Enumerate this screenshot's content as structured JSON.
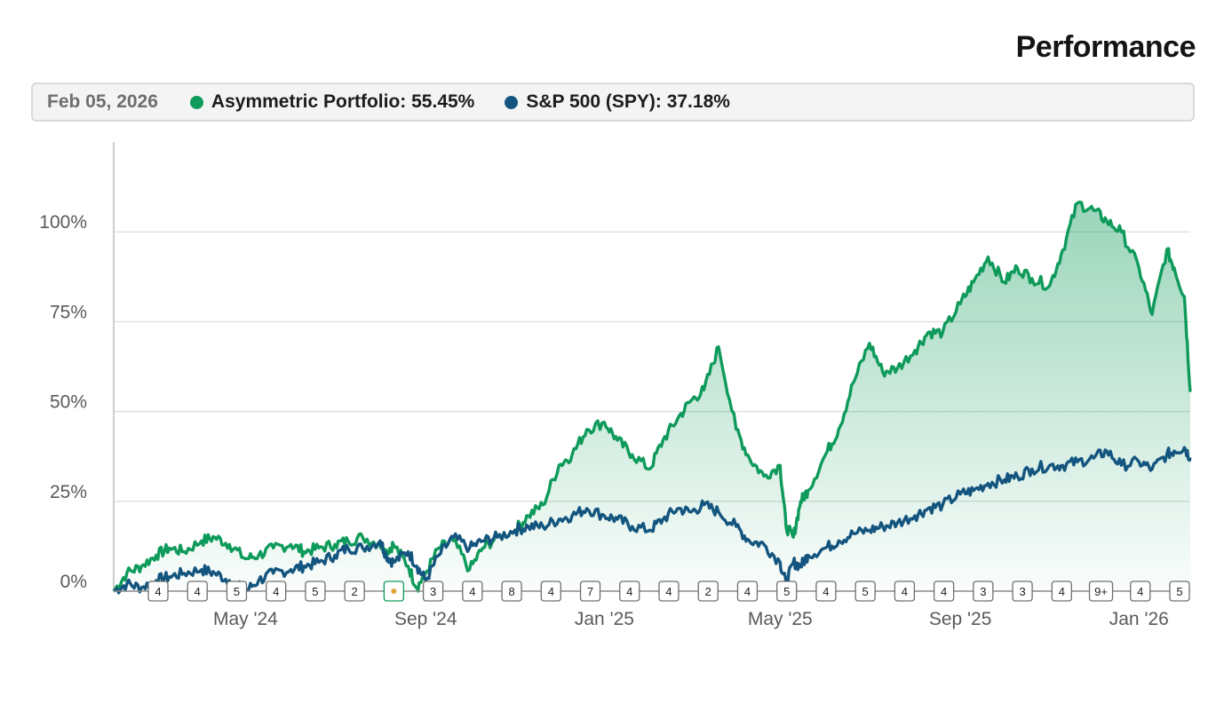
{
  "header": {
    "title": "Performance"
  },
  "legend": {
    "date": "Feb 05, 2026",
    "items": [
      {
        "label": "Asymmetric Portfolio: 55.45%",
        "color": "#0e9a5a"
      },
      {
        "label": "S&P 500 (SPY): 37.18%",
        "color": "#14557f"
      }
    ]
  },
  "chart_data": {
    "type": "area",
    "x_axis": {
      "start": "2024-02-01",
      "end": "2026-02-05",
      "ticks": [
        {
          "date": "2024-05-01",
          "label": "May '24"
        },
        {
          "date": "2024-09-01",
          "label": "Sep '24"
        },
        {
          "date": "2025-01-01",
          "label": "Jan '25"
        },
        {
          "date": "2025-05-01",
          "label": "May '25"
        },
        {
          "date": "2025-09-01",
          "label": "Sep '25"
        },
        {
          "date": "2026-01-01",
          "label": "Jan '26"
        }
      ]
    },
    "y_axis": {
      "min": 0,
      "max": 125,
      "ticks": [
        0,
        25,
        50,
        75,
        100
      ],
      "tick_labels": [
        "0%",
        "25%",
        "50%",
        "75%",
        "100%"
      ]
    },
    "grid": "horizontal",
    "series": [
      {
        "name": "Asymmetric Portfolio",
        "color": "#0e9a5a",
        "filled": true,
        "points": [
          [
            "2024-02-01",
            0
          ],
          [
            "2024-02-10",
            5
          ],
          [
            "2024-02-20",
            7
          ],
          [
            "2024-03-01",
            10
          ],
          [
            "2024-03-10",
            12
          ],
          [
            "2024-03-20",
            11
          ],
          [
            "2024-04-01",
            14
          ],
          [
            "2024-04-10",
            15
          ],
          [
            "2024-04-20",
            13
          ],
          [
            "2024-05-01",
            9
          ],
          [
            "2024-05-10",
            10
          ],
          [
            "2024-05-20",
            12
          ],
          [
            "2024-06-01",
            13
          ],
          [
            "2024-06-10",
            11
          ],
          [
            "2024-06-20",
            12
          ],
          [
            "2024-07-01",
            13
          ],
          [
            "2024-07-10",
            14
          ],
          [
            "2024-07-20",
            15
          ],
          [
            "2024-08-01",
            13
          ],
          [
            "2024-08-05",
            11
          ],
          [
            "2024-08-10",
            13
          ],
          [
            "2024-08-20",
            7
          ],
          [
            "2024-08-26",
            1
          ],
          [
            "2024-09-01",
            5
          ],
          [
            "2024-09-10",
            12
          ],
          [
            "2024-09-20",
            14
          ],
          [
            "2024-10-01",
            6
          ],
          [
            "2024-10-10",
            12
          ],
          [
            "2024-10-20",
            15
          ],
          [
            "2024-11-01",
            17
          ],
          [
            "2024-11-10",
            21
          ],
          [
            "2024-11-20",
            24
          ],
          [
            "2024-12-01",
            35
          ],
          [
            "2024-12-10",
            38
          ],
          [
            "2024-12-20",
            45
          ],
          [
            "2025-01-01",
            47
          ],
          [
            "2025-01-10",
            42
          ],
          [
            "2025-01-20",
            38
          ],
          [
            "2025-02-01",
            34
          ],
          [
            "2025-02-10",
            42
          ],
          [
            "2025-02-20",
            48
          ],
          [
            "2025-03-01",
            53
          ],
          [
            "2025-03-10",
            56
          ],
          [
            "2025-03-20",
            68
          ],
          [
            "2025-04-01",
            45
          ],
          [
            "2025-04-10",
            37
          ],
          [
            "2025-04-20",
            32
          ],
          [
            "2025-05-01",
            35
          ],
          [
            "2025-05-05",
            18
          ],
          [
            "2025-05-10",
            15
          ],
          [
            "2025-05-15",
            25
          ],
          [
            "2025-05-20",
            28
          ],
          [
            "2025-06-01",
            38
          ],
          [
            "2025-06-10",
            45
          ],
          [
            "2025-06-20",
            58
          ],
          [
            "2025-07-01",
            69
          ],
          [
            "2025-07-10",
            61
          ],
          [
            "2025-07-20",
            62
          ],
          [
            "2025-08-01",
            67
          ],
          [
            "2025-08-10",
            72
          ],
          [
            "2025-08-20",
            72
          ],
          [
            "2025-09-01",
            80
          ],
          [
            "2025-09-10",
            86
          ],
          [
            "2025-09-20",
            93
          ],
          [
            "2025-10-01",
            86
          ],
          [
            "2025-10-10",
            90
          ],
          [
            "2025-10-20",
            87
          ],
          [
            "2025-11-01",
            85
          ],
          [
            "2025-11-10",
            95
          ],
          [
            "2025-11-20",
            108
          ],
          [
            "2025-12-01",
            106
          ],
          [
            "2025-12-10",
            103
          ],
          [
            "2025-12-20",
            100
          ],
          [
            "2026-01-01",
            90
          ],
          [
            "2026-01-10",
            77
          ],
          [
            "2026-01-20",
            95
          ],
          [
            "2026-01-25",
            90
          ],
          [
            "2026-02-01",
            82
          ],
          [
            "2026-02-05",
            55.45
          ]
        ]
      },
      {
        "name": "S&P 500 (SPY)",
        "color": "#14557f",
        "filled": false,
        "points": [
          [
            "2024-02-01",
            0
          ],
          [
            "2024-02-10",
            2
          ],
          [
            "2024-02-20",
            1
          ],
          [
            "2024-03-01",
            3
          ],
          [
            "2024-03-10",
            4
          ],
          [
            "2024-03-20",
            5
          ],
          [
            "2024-04-01",
            6
          ],
          [
            "2024-04-10",
            5
          ],
          [
            "2024-04-20",
            3
          ],
          [
            "2024-05-01",
            0
          ],
          [
            "2024-05-10",
            3
          ],
          [
            "2024-05-20",
            5
          ],
          [
            "2024-06-01",
            6
          ],
          [
            "2024-06-10",
            7
          ],
          [
            "2024-06-20",
            8
          ],
          [
            "2024-07-01",
            10
          ],
          [
            "2024-07-10",
            12
          ],
          [
            "2024-07-20",
            12
          ],
          [
            "2024-08-01",
            14
          ],
          [
            "2024-08-05",
            10
          ],
          [
            "2024-08-10",
            8
          ],
          [
            "2024-08-20",
            11
          ],
          [
            "2024-08-26",
            7
          ],
          [
            "2024-09-01",
            3
          ],
          [
            "2024-09-10",
            10
          ],
          [
            "2024-09-20",
            15
          ],
          [
            "2024-10-01",
            12
          ],
          [
            "2024-10-10",
            14
          ],
          [
            "2024-10-20",
            15
          ],
          [
            "2024-11-01",
            17
          ],
          [
            "2024-11-10",
            18
          ],
          [
            "2024-11-20",
            18
          ],
          [
            "2024-12-01",
            20
          ],
          [
            "2024-12-10",
            21
          ],
          [
            "2024-12-20",
            23
          ],
          [
            "2025-01-01",
            21
          ],
          [
            "2025-01-10",
            20
          ],
          [
            "2025-01-20",
            18
          ],
          [
            "2025-02-01",
            17
          ],
          [
            "2025-02-10",
            20
          ],
          [
            "2025-02-20",
            23
          ],
          [
            "2025-03-01",
            22
          ],
          [
            "2025-03-10",
            24
          ],
          [
            "2025-03-20",
            22
          ],
          [
            "2025-04-01",
            18
          ],
          [
            "2025-04-10",
            14
          ],
          [
            "2025-04-20",
            13
          ],
          [
            "2025-05-01",
            8
          ],
          [
            "2025-05-05",
            2
          ],
          [
            "2025-05-10",
            8
          ],
          [
            "2025-05-15",
            7
          ],
          [
            "2025-05-20",
            10
          ],
          [
            "2025-06-01",
            12
          ],
          [
            "2025-06-10",
            14
          ],
          [
            "2025-06-20",
            16
          ],
          [
            "2025-07-01",
            17
          ],
          [
            "2025-07-10",
            18
          ],
          [
            "2025-07-20",
            19
          ],
          [
            "2025-08-01",
            21
          ],
          [
            "2025-08-10",
            23
          ],
          [
            "2025-08-20",
            24
          ],
          [
            "2025-09-01",
            27
          ],
          [
            "2025-09-10",
            28
          ],
          [
            "2025-09-20",
            30
          ],
          [
            "2025-10-01",
            31
          ],
          [
            "2025-10-10",
            32
          ],
          [
            "2025-10-20",
            34
          ],
          [
            "2025-11-01",
            35
          ],
          [
            "2025-11-10",
            35
          ],
          [
            "2025-11-20",
            36
          ],
          [
            "2025-12-01",
            37
          ],
          [
            "2025-12-10",
            39
          ],
          [
            "2025-12-20",
            35
          ],
          [
            "2026-01-01",
            36
          ],
          [
            "2026-01-10",
            34
          ],
          [
            "2026-01-20",
            38
          ],
          [
            "2026-01-25",
            39
          ],
          [
            "2026-02-01",
            40
          ],
          [
            "2026-02-05",
            37.18
          ]
        ]
      }
    ],
    "markers": [
      {
        "date": "2024-04-05",
        "label": "4"
      },
      {
        "date": "2024-05-05",
        "label": "4"
      },
      {
        "date": "2024-06-05",
        "label": "5"
      },
      {
        "date": "2024-07-05",
        "label": "4"
      },
      {
        "date": "2024-08-05",
        "label": "5"
      },
      {
        "date": "2024-08-30",
        "label": "2"
      },
      {
        "date": "2024-09-20",
        "label": "",
        "highlight": true
      },
      {
        "date": "2024-10-10",
        "label": "3"
      },
      {
        "date": "2024-11-10",
        "label": "4"
      },
      {
        "date": "2024-12-20",
        "label": "8"
      },
      {
        "date": "2025-01-15",
        "label": "4"
      },
      {
        "date": "2025-02-05",
        "label": "7"
      },
      {
        "date": "2025-03-05",
        "label": "4"
      },
      {
        "date": "2025-04-05",
        "label": "4"
      },
      {
        "date": "2025-04-17",
        "label": "2"
      },
      {
        "date": "2025-05-15",
        "label": "4"
      },
      {
        "date": "2025-06-15",
        "label": "5"
      },
      {
        "date": "2025-07-15",
        "label": "4"
      },
      {
        "date": "2025-08-15",
        "label": "5"
      },
      {
        "date": "2025-09-15",
        "label": "4"
      },
      {
        "date": "2025-10-15",
        "label": "4"
      },
      {
        "date": "2025-11-20",
        "label": "3"
      },
      {
        "date": "2025-12-15",
        "label": "3"
      },
      {
        "date": "2026-01-20",
        "label": "4"
      },
      {
        "date": "2026-02-10",
        "label": "9+"
      },
      {
        "date": "2026-03-15",
        "label": "4"
      },
      {
        "date": "2026-04-10",
        "label": "5"
      }
    ]
  }
}
